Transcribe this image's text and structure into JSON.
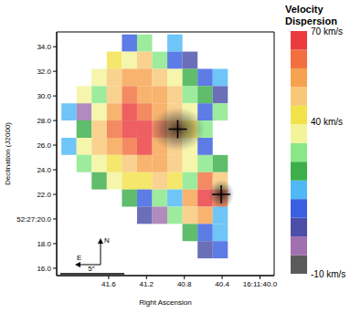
{
  "chart_data": {
    "type": "heatmap",
    "xlabel": "Right Ascension",
    "ylabel": "Declination (J2000)",
    "xlim": [
      42.15,
      39.85
    ],
    "xticks": [
      41.6,
      41.2,
      40.8,
      40.4,
      {
        "value": 40.0,
        "label": "16:11:40.0"
      }
    ],
    "ylim": [
      15.4,
      35.2
    ],
    "yticks": [
      {
        "value": 16,
        "label": "16.0"
      },
      {
        "value": 18,
        "label": "18.0"
      },
      {
        "value": 20,
        "label": "52:27:20.0"
      },
      {
        "value": 22,
        "label": "22.0"
      },
      {
        "value": 24,
        "label": "24.0"
      },
      {
        "value": 26,
        "label": "26.0"
      },
      {
        "value": 28,
        "label": "28.0"
      },
      {
        "value": 30,
        "label": "30.0"
      },
      {
        "value": 32,
        "label": "32.0"
      },
      {
        "value": 34,
        "label": "34.0"
      }
    ],
    "grid": false,
    "x_centers": [
      42.02,
      41.86,
      41.7,
      41.54,
      41.38,
      41.22,
      41.06,
      40.9,
      40.74,
      40.58,
      40.42
    ],
    "y_centers": [
      34.3,
      32.9,
      31.5,
      30.1,
      28.7,
      27.3,
      25.9,
      24.5,
      23.1,
      21.7,
      20.3,
      18.9,
      17.5
    ],
    "cells": [
      [
        null,
        null,
        null,
        null,
        12,
        30,
        null,
        18,
        null,
        null,
        null
      ],
      [
        null,
        null,
        null,
        42,
        36,
        48,
        30,
        12,
        5,
        null,
        null
      ],
      [
        null,
        null,
        36,
        48,
        55,
        55,
        48,
        36,
        24,
        12,
        18
      ],
      [
        null,
        36,
        30,
        48,
        61,
        55,
        55,
        48,
        30,
        24,
        5
      ],
      [
        18,
        -1,
        36,
        55,
        67,
        61,
        55,
        48,
        36,
        12,
        30
      ],
      [
        null,
        24,
        48,
        61,
        67,
        67,
        61,
        55,
        42,
        30,
        null
      ],
      [
        18,
        36,
        48,
        55,
        61,
        67,
        55,
        48,
        36,
        12,
        null
      ],
      [
        null,
        30,
        36,
        42,
        48,
        55,
        55,
        48,
        36,
        30,
        24
      ],
      [
        null,
        null,
        24,
        36,
        42,
        42,
        48,
        42,
        30,
        61,
        48
      ],
      [
        null,
        null,
        null,
        null,
        24,
        12,
        30,
        18,
        55,
        67,
        61
      ],
      [
        null,
        null,
        null,
        null,
        null,
        5,
        -1,
        30,
        48,
        55,
        18
      ],
      [
        null,
        null,
        null,
        null,
        null,
        null,
        null,
        null,
        24,
        12,
        18
      ],
      [
        null,
        null,
        null,
        null,
        null,
        null,
        null,
        null,
        null,
        5,
        12
      ]
    ],
    "colorbar": {
      "title": "Velocity Dispersion",
      "range": [
        -10,
        70
      ],
      "ticks": [
        {
          "value": 70,
          "label": "70 km/s"
        },
        {
          "value": 40,
          "label": "40 km/s"
        },
        {
          "value": -10,
          "label": "-10 km/s"
        }
      ],
      "colors": [
        "#5b5b5b",
        "#a070b0",
        "#4b4fa8",
        "#3a5fe0",
        "#4fb8f5",
        "#3cae4a",
        "#88e888",
        "#f3f39a",
        "#f2e24a",
        "#f8c878",
        "#f6a24e",
        "#f2703f",
        "#ea3c3f"
      ]
    },
    "markers": [
      {
        "x": 40.87,
        "y": 27.3
      },
      {
        "x": 40.41,
        "y": 22.0
      }
    ],
    "annotations": [
      "N",
      "E",
      "5″"
    ]
  }
}
